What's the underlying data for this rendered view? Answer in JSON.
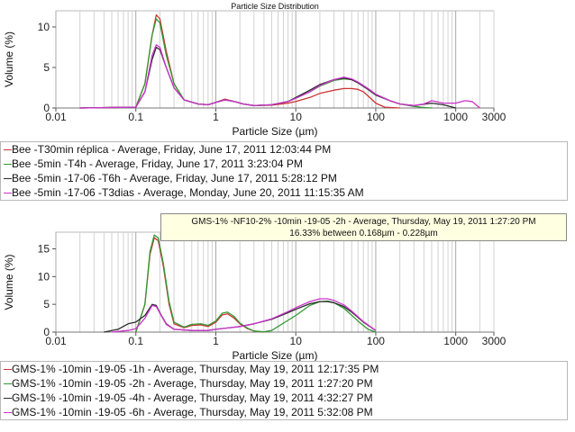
{
  "chart_data": [
    {
      "type": "line",
      "title": "Particle Size Distribution",
      "xlabel": "Particle Size (µm)",
      "ylabel": "Volume (%)",
      "xscale": "log",
      "xlim": [
        0.01,
        3000
      ],
      "ylim": [
        0,
        12
      ],
      "xticks": [
        "0.01",
        "0.1",
        "1",
        "10",
        "100",
        "1000",
        "3000"
      ],
      "yticks": [
        "0",
        "5",
        "10"
      ],
      "grid": "vertical",
      "legend_placement": "below",
      "series": [
        {
          "name": "Bee -T30min réplica - Average, Friday, June 17, 2011 12:03:44 PM",
          "color": "#cc3333",
          "x": [
            0.02,
            0.1,
            0.13,
            0.16,
            0.18,
            0.2,
            0.24,
            0.3,
            0.4,
            0.6,
            0.8,
            1,
            1.3,
            1.7,
            2.2,
            3,
            5,
            8,
            10,
            15,
            20,
            30,
            40,
            50,
            60,
            70,
            80,
            100,
            130,
            200
          ],
          "y": [
            0,
            0.1,
            3,
            9,
            11.5,
            11,
            7,
            3,
            1,
            0.5,
            0.4,
            0.7,
            1.1,
            0.8,
            0.5,
            0.3,
            0.35,
            0.6,
            0.8,
            1.3,
            1.8,
            2.2,
            2.4,
            2.4,
            2.3,
            2,
            1.5,
            0.6,
            0.1,
            0
          ]
        },
        {
          "name": "Bee -5min -T4h - Average, Friday, June 17, 2011 3:23:04 PM",
          "color": "#339933",
          "x": [
            0.02,
            0.1,
            0.13,
            0.16,
            0.18,
            0.2,
            0.24,
            0.3,
            0.4,
            0.6,
            0.8,
            1,
            1.3,
            1.7,
            2.2,
            3,
            5,
            8,
            10,
            15,
            20,
            30,
            40,
            50,
            60,
            80,
            100,
            150,
            200,
            300,
            400,
            500
          ],
          "y": [
            0,
            0.1,
            3,
            9,
            11,
            10.5,
            6.5,
            3,
            1,
            0.5,
            0.4,
            0.7,
            1,
            0.8,
            0.5,
            0.3,
            0.4,
            0.8,
            1.2,
            2,
            2.7,
            3.4,
            3.6,
            3.5,
            3.2,
            2.4,
            1.7,
            0.9,
            0.5,
            0.2,
            0.05,
            0
          ]
        },
        {
          "name": "Bee -5min -17-06 -T6h - Average, Friday, June 17, 2011 5:28:12 PM",
          "color": "#2a2a2a",
          "x": [
            0.02,
            0.1,
            0.13,
            0.16,
            0.18,
            0.2,
            0.24,
            0.3,
            0.4,
            0.6,
            0.8,
            1,
            1.3,
            1.7,
            2.2,
            3,
            5,
            8,
            10,
            15,
            20,
            30,
            40,
            50,
            60,
            80,
            100,
            150,
            200,
            300,
            500,
            700,
            1000
          ],
          "y": [
            0,
            0.1,
            2,
            6,
            7.5,
            7.2,
            5,
            2.5,
            1,
            0.5,
            0.4,
            0.7,
            1,
            0.8,
            0.5,
            0.3,
            0.4,
            0.8,
            1.3,
            2.2,
            2.9,
            3.5,
            3.7,
            3.5,
            3.1,
            2.3,
            1.6,
            0.9,
            0.5,
            0.3,
            0.6,
            0.4,
            0
          ]
        },
        {
          "name": "Bee -5min -17-06 -T3dias - Average, Monday, June 20, 2011 11:15:35 AM",
          "color": "#cc33cc",
          "x": [
            0.02,
            0.1,
            0.13,
            0.16,
            0.18,
            0.2,
            0.24,
            0.3,
            0.4,
            0.6,
            0.8,
            1,
            1.3,
            1.7,
            2.2,
            3,
            5,
            8,
            10,
            15,
            20,
            30,
            40,
            50,
            60,
            80,
            100,
            150,
            200,
            300,
            400,
            500,
            700,
            1000,
            1300,
            1600,
            2000
          ],
          "y": [
            0,
            0.1,
            2,
            6.5,
            7.8,
            7.5,
            5,
            2.5,
            1,
            0.5,
            0.4,
            0.7,
            1,
            0.8,
            0.5,
            0.3,
            0.4,
            0.8,
            1.2,
            2,
            2.8,
            3.5,
            3.8,
            3.6,
            3.2,
            2.4,
            1.7,
            0.9,
            0.5,
            0.3,
            0.5,
            0.9,
            0.6,
            0.6,
            0.9,
            0.8,
            0
          ]
        }
      ]
    },
    {
      "type": "line",
      "title": "",
      "xlabel": "Particle Size (µm)",
      "ylabel": "Volume (%)",
      "xscale": "log",
      "xlim": [
        0.01,
        3000
      ],
      "ylim": [
        0,
        18
      ],
      "xticks": [
        "0.01",
        "0.1",
        "1",
        "10",
        "100",
        "1000",
        "3000"
      ],
      "yticks": [
        "0",
        "5",
        "10",
        "15"
      ],
      "grid": "vertical",
      "legend_placement": "below",
      "series": [
        {
          "name": "GMS-1% -10min -19-05 -1h - Average, Thursday, May 19, 2011 12:17:35 PM",
          "color": "#cc3333",
          "x": [
            0.1,
            0.13,
            0.15,
            0.17,
            0.19,
            0.22,
            0.26,
            0.3,
            0.4,
            0.5,
            0.65,
            0.8,
            1,
            1.2,
            1.4,
            1.7,
            2,
            2.5,
            3,
            4
          ],
          "y": [
            0,
            5,
            14,
            17,
            16.5,
            12,
            5,
            1.5,
            0.8,
            1.2,
            1.3,
            1,
            1.8,
            3.1,
            3.3,
            2.5,
            1.5,
            0.6,
            0.2,
            0
          ]
        },
        {
          "name": "GMS-1% -10min -19-05 -2h - Average, Thursday, May 19, 2011 1:27:20 PM",
          "color": "#339933",
          "x": [
            0.1,
            0.13,
            0.15,
            0.17,
            0.19,
            0.22,
            0.26,
            0.3,
            0.4,
            0.5,
            0.65,
            0.8,
            1,
            1.2,
            1.4,
            1.7,
            2,
            2.5,
            3,
            4,
            5,
            10,
            15,
            20,
            25,
            30,
            40,
            60,
            80,
            100
          ],
          "y": [
            0,
            5,
            14.5,
            17.5,
            17,
            12.5,
            5.5,
            1.8,
            0.9,
            1.4,
            1.5,
            1.2,
            2,
            3.4,
            3.6,
            2.8,
            1.6,
            0.7,
            0.2,
            0.05,
            0.3,
            3,
            4.8,
            5.5,
            5.6,
            5.3,
            4.3,
            2,
            0.5,
            0
          ]
        },
        {
          "name": "GMS-1% -10min -19-05 -4h - Average, Thursday, May 19, 2011 4:32:27 PM",
          "color": "#2a2a2a",
          "x": [
            0.04,
            0.06,
            0.08,
            0.1,
            0.13,
            0.16,
            0.18,
            0.2,
            0.24,
            0.3,
            0.5,
            0.8,
            1,
            1.5,
            2,
            3,
            5,
            8,
            10,
            15,
            20,
            25,
            30,
            40,
            50,
            70,
            100
          ],
          "y": [
            0,
            0.5,
            1.5,
            1.8,
            3,
            5,
            4.8,
            3.5,
            1.5,
            0.5,
            0.3,
            0.3,
            0.5,
            0.8,
            1,
            1.5,
            2.3,
            3.5,
            4.1,
            5.1,
            5.5,
            5.5,
            5.3,
            4.6,
            3.6,
            1.8,
            0.3
          ]
        },
        {
          "name": "GMS-1% -10min -19-05 -6h - Average, Thursday, May 19, 2011 5:32:08 PM",
          "color": "#cc33cc",
          "x": [
            0.05,
            0.08,
            0.1,
            0.13,
            0.16,
            0.18,
            0.2,
            0.24,
            0.3,
            0.5,
            0.8,
            1,
            1.5,
            2,
            3,
            5,
            8,
            10,
            15,
            20,
            25,
            30,
            40,
            50,
            70,
            100
          ],
          "y": [
            0,
            0.3,
            0.6,
            2.5,
            4.8,
            4.6,
            3.4,
            1.4,
            0.5,
            0.3,
            0.3,
            0.5,
            0.8,
            1,
            1.5,
            2.4,
            3.7,
            4.4,
            5.5,
            6,
            6,
            5.7,
            4.9,
            3.8,
            1.9,
            0.3
          ]
        }
      ]
    }
  ],
  "tooltip": {
    "line1": "GMS-1% -NF10-2% -10min -19-05 -2h - Average, Thursday, May 19, 2011 1:27:20 PM",
    "line2": "16.33% between 0.168µm - 0.228µm"
  }
}
